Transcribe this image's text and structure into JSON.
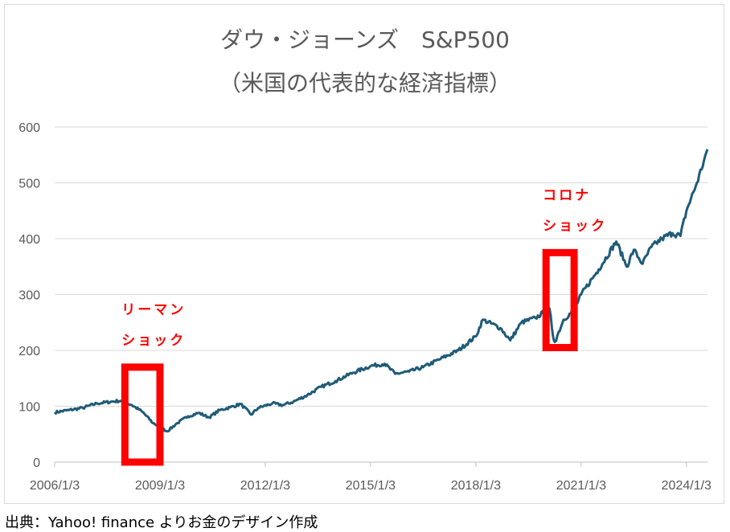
{
  "chart_data": {
    "type": "line",
    "title": "ダウ・ジョーンズ　S&P500",
    "subtitle": "（米国の代表的な経済指標）",
    "xlabel": "",
    "ylabel": "",
    "ylim": [
      0,
      600
    ],
    "yticks": [
      0,
      100,
      200,
      300,
      400,
      500,
      600
    ],
    "xticks": [
      "2006/1/3",
      "2009/1/3",
      "2012/1/3",
      "2015/1/3",
      "2018/1/3",
      "2021/1/3",
      "2024/1/3"
    ],
    "grid": "horizontal",
    "line_color": "#1f5b78",
    "series": [
      {
        "x": [
          2006.0,
          2006.4,
          2006.8,
          2007.2,
          2007.6,
          2007.9,
          2008.2,
          2008.5,
          2008.8,
          2009.0,
          2009.2,
          2009.5,
          2009.8,
          2010.1,
          2010.4,
          2010.7,
          2011.0,
          2011.3,
          2011.6,
          2011.8,
          2012.2,
          2012.5,
          2012.8,
          2013.2,
          2013.6,
          2014.0,
          2014.5,
          2015.0,
          2015.4,
          2015.7,
          2016.1,
          2016.5,
          2017.0,
          2017.5,
          2018.0,
          2018.2,
          2018.7,
          2018.98,
          2019.3,
          2019.7,
          2020.1,
          2020.2,
          2020.25,
          2020.5,
          2020.8,
          2021.0,
          2021.5,
          2022.0,
          2022.3,
          2022.5,
          2022.75,
          2023.0,
          2023.3,
          2023.6,
          2023.83,
          2024.0,
          2024.3,
          2024.5,
          2024.6
        ],
        "y": [
          89,
          93,
          97,
          105,
          108,
          110,
          102,
          90,
          70,
          63,
          55,
          70,
          82,
          88,
          80,
          93,
          98,
          104,
          85,
          97,
          105,
          102,
          108,
          120,
          135,
          145,
          160,
          172,
          176,
          158,
          162,
          170,
          185,
          200,
          225,
          255,
          240,
          218,
          250,
          258,
          275,
          225,
          215,
          255,
          272,
          300,
          345,
          395,
          350,
          380,
          355,
          385,
          400,
          410,
          405,
          450,
          500,
          540,
          560
        ]
      }
    ],
    "annotations": [
      {
        "lines": [
          "リーマン",
          "ショック"
        ],
        "box_x": [
          2008.0,
          2009.0
        ],
        "box_y": [
          0,
          170
        ]
      },
      {
        "lines": [
          "コロナ",
          "ショック"
        ],
        "box_x": [
          2020.0,
          2020.8
        ],
        "box_y": [
          205,
          375
        ]
      }
    ]
  },
  "source_caption": "出典：Yahoo! finance よりお金のデザイン作成"
}
